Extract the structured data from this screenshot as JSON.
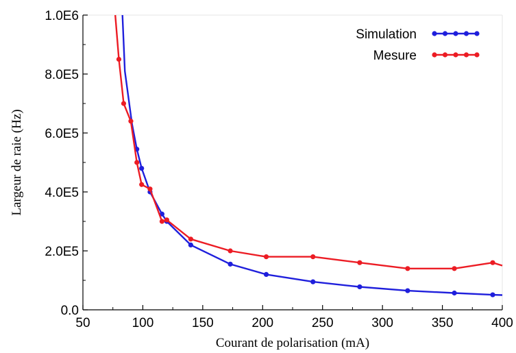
{
  "chart_data": {
    "type": "line",
    "xlabel": "Courant de polarisation (mA)",
    "ylabel": "Largeur de raie (Hz)",
    "xlim": [
      50,
      400
    ],
    "ylim": [
      0,
      1000000
    ],
    "xticks": [
      50,
      100,
      150,
      200,
      250,
      300,
      350,
      400
    ],
    "xtick_labels": [
      "50",
      "100",
      "150",
      "200",
      "250",
      "300",
      "350",
      "400"
    ],
    "yticks": [
      0,
      200000,
      400000,
      600000,
      800000,
      1000000
    ],
    "ytick_labels": [
      "0.0",
      "2.0E5",
      "4.0E5",
      "6.0E5",
      "8.0E5",
      "1.0E6"
    ],
    "grid": false,
    "legend_position": "top-right",
    "series": [
      {
        "name": "Simulation",
        "color": "#1f1fdc",
        "x": [
          83,
          85,
          91,
          95,
          99,
          106,
          116,
          120,
          140,
          173,
          203,
          242,
          281,
          321,
          360,
          392,
          400
        ],
        "y": [
          1000000,
          810000,
          630000,
          545000,
          480000,
          400000,
          325000,
          300000,
          220000,
          155000,
          120000,
          95000,
          78000,
          65000,
          57000,
          51000,
          50000
        ],
        "marker_count": 13
      },
      {
        "name": "Mesure",
        "color": "#ec1c24",
        "x": [
          77,
          80,
          84,
          90,
          95,
          99,
          106,
          116,
          120,
          140,
          173,
          203,
          242,
          281,
          321,
          360,
          392,
          400
        ],
        "y": [
          1000000,
          850000,
          700000,
          640000,
          500000,
          425000,
          410000,
          300000,
          305000,
          240000,
          200000,
          180000,
          180000,
          160000,
          140000,
          140000,
          160000,
          150000
        ],
        "marker_count": 16
      }
    ]
  }
}
